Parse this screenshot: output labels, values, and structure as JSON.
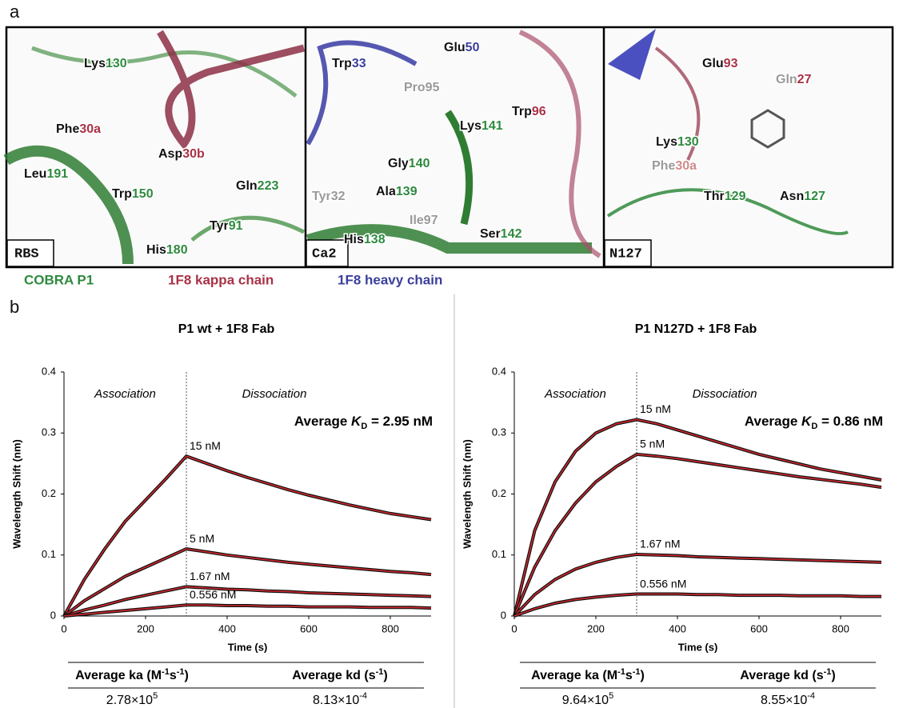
{
  "panel_a": {
    "letter": "a",
    "panels": [
      {
        "tag": "RBS",
        "labels": [
          [
            "Lys",
            "130"
          ],
          [
            "Phe",
            "30a"
          ],
          [
            "Asp",
            "30b"
          ],
          [
            "Leu",
            "191"
          ],
          [
            "Trp",
            "150"
          ],
          [
            "Gln",
            "223"
          ],
          [
            "Tyr",
            "91"
          ],
          [
            "His",
            "180"
          ]
        ]
      },
      {
        "tag": "Ca2",
        "labels": [
          [
            "Trp",
            "33"
          ],
          [
            "Glu",
            "50"
          ],
          [
            "Pro",
            "95"
          ],
          [
            "Trp",
            "96"
          ],
          [
            "Lys",
            "141"
          ],
          [
            "Gly",
            "140"
          ],
          [
            "Ala",
            "139"
          ],
          [
            "Tyr",
            "32"
          ],
          [
            "Ile",
            "97"
          ],
          [
            "His",
            "138"
          ],
          [
            "Ser",
            "142"
          ]
        ]
      },
      {
        "tag": "N127",
        "labels": [
          [
            "Glu",
            "93"
          ],
          [
            "Gln",
            "27"
          ],
          [
            "Lys",
            "130"
          ],
          [
            "Phe",
            "30a"
          ],
          [
            "Thr",
            "129"
          ],
          [
            "Asn",
            "127"
          ]
        ]
      }
    ],
    "legend": [
      "COBRA P1",
      "1F8 kappa chain",
      "1F8 heavy chain"
    ]
  },
  "panel_b_letter": "b",
  "chart_data": [
    {
      "type": "line",
      "title": "P1 wt + 1F8 Fab",
      "x_label": "Time (s)",
      "y_label": "Wavelength Shift (nm)",
      "annotations": [
        "Association",
        "Dissociation"
      ],
      "kd_text": [
        "Average ",
        "K",
        "D",
        " = 2.95 nM"
      ],
      "xlim": [
        0,
        900
      ],
      "xticks": [
        0,
        200,
        400,
        600,
        800
      ],
      "ylim": [
        0,
        0.4
      ],
      "yticks": [
        0,
        0.1,
        0.2,
        0.3,
        0.4
      ],
      "phase_boundary": 300,
      "data_color": "#111111",
      "fit_color": "#d0282e",
      "x": [
        0,
        50,
        100,
        150,
        200,
        250,
        300,
        350,
        400,
        450,
        500,
        550,
        600,
        650,
        700,
        750,
        800,
        850,
        900
      ],
      "series": [
        {
          "name": "15 nM",
          "values": [
            0,
            0.06,
            0.11,
            0.155,
            0.19,
            0.225,
            0.262,
            0.25,
            0.238,
            0.227,
            0.217,
            0.207,
            0.198,
            0.19,
            0.182,
            0.175,
            0.168,
            0.163,
            0.158
          ]
        },
        {
          "name": "5 nM",
          "values": [
            0,
            0.025,
            0.045,
            0.065,
            0.08,
            0.095,
            0.11,
            0.105,
            0.1,
            0.096,
            0.092,
            0.088,
            0.085,
            0.082,
            0.079,
            0.076,
            0.073,
            0.071,
            0.068
          ]
        },
        {
          "name": "1.67 nM",
          "values": [
            0,
            0.01,
            0.018,
            0.027,
            0.034,
            0.041,
            0.048,
            0.046,
            0.044,
            0.043,
            0.041,
            0.04,
            0.038,
            0.037,
            0.036,
            0.035,
            0.034,
            0.033,
            0.032
          ]
        },
        {
          "name": "0.556 nM",
          "values": [
            0,
            0.003,
            0.006,
            0.009,
            0.012,
            0.015,
            0.018,
            0.018,
            0.017,
            0.017,
            0.016,
            0.016,
            0.015,
            0.015,
            0.015,
            0.014,
            0.014,
            0.014,
            0.013
          ]
        }
      ],
      "kinetics_table": {
        "headers": [
          [
            "Average ka (M",
            "-1",
            "s",
            "-1",
            ")"
          ],
          [
            "Average kd (s",
            "-1",
            ")"
          ]
        ],
        "values": [
          [
            "2.78×10",
            "5"
          ],
          [
            "8.13×10",
            "-4"
          ]
        ]
      }
    },
    {
      "type": "line",
      "title": "P1 N127D + 1F8 Fab",
      "x_label": "Time (s)",
      "y_label": "Wavelength Shift (nm)",
      "annotations": [
        "Association",
        "Dissociation"
      ],
      "kd_text": [
        "Average ",
        "K",
        "D",
        " = 0.86 nM"
      ],
      "xlim": [
        0,
        900
      ],
      "xticks": [
        0,
        200,
        400,
        600,
        800
      ],
      "ylim": [
        0,
        0.4
      ],
      "yticks": [
        0,
        0.1,
        0.2,
        0.3,
        0.4
      ],
      "phase_boundary": 300,
      "data_color": "#111111",
      "fit_color": "#d0282e",
      "x": [
        0,
        50,
        100,
        150,
        200,
        250,
        300,
        350,
        400,
        450,
        500,
        550,
        600,
        650,
        700,
        750,
        800,
        850,
        900
      ],
      "series": [
        {
          "name": "15 nM",
          "values": [
            0,
            0.14,
            0.22,
            0.27,
            0.3,
            0.315,
            0.322,
            0.315,
            0.305,
            0.295,
            0.285,
            0.275,
            0.265,
            0.257,
            0.249,
            0.241,
            0.235,
            0.229,
            0.223
          ]
        },
        {
          "name": "5 nM",
          "values": [
            0,
            0.08,
            0.14,
            0.185,
            0.22,
            0.245,
            0.265,
            0.262,
            0.258,
            0.253,
            0.248,
            0.243,
            0.238,
            0.233,
            0.228,
            0.224,
            0.22,
            0.216,
            0.211
          ]
        },
        {
          "name": "1.67 nM",
          "values": [
            0,
            0.035,
            0.06,
            0.077,
            0.088,
            0.096,
            0.101,
            0.1,
            0.099,
            0.097,
            0.096,
            0.095,
            0.094,
            0.093,
            0.092,
            0.091,
            0.09,
            0.089,
            0.088
          ]
        },
        {
          "name": "0.556 nM",
          "values": [
            0,
            0.012,
            0.021,
            0.027,
            0.031,
            0.034,
            0.036,
            0.036,
            0.036,
            0.035,
            0.035,
            0.034,
            0.034,
            0.034,
            0.033,
            0.033,
            0.033,
            0.032,
            0.032
          ]
        }
      ],
      "kinetics_table": {
        "headers": [
          [
            "Average ka (M",
            "-1",
            "s",
            "-1",
            ")"
          ],
          [
            "Average kd (s",
            "-1",
            ")"
          ]
        ],
        "values": [
          [
            "9.64×10",
            "5"
          ],
          [
            "8.55×10",
            "-4"
          ]
        ]
      }
    }
  ]
}
